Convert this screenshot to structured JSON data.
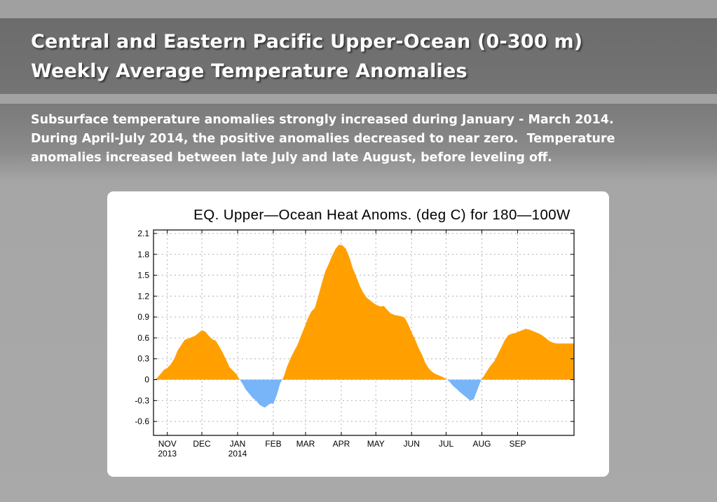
{
  "slide": {
    "title_lines": [
      "Central and Eastern Pacific Upper-Ocean (0-300 m)",
      "Weekly Average Temperature Anomalies"
    ],
    "body_lines": [
      "Subsurface temperature anomalies strongly increased during January - March 2014.",
      "During April-July 2014, the positive anomalies decreased to near zero.  Temperature",
      "anomalies increased between late July and late August, before leveling off."
    ],
    "colors": {
      "positive_fill": "#ffa000",
      "negative_fill": "#78b4f8",
      "title_band": "#707070",
      "text": "#ffffff"
    }
  },
  "chart_data": {
    "type": "area",
    "title": "EQ. Upper—Ocean Heat Anoms. (deg C) for 180—100W",
    "xlabel": "",
    "ylabel": "",
    "ylim": [
      -0.8,
      2.15
    ],
    "yticks": [
      2.1,
      1.8,
      1.5,
      1.2,
      0.9,
      0.6,
      0.3,
      0,
      -0.3,
      -0.6
    ],
    "ytick_labels": [
      "2.1",
      "1.8",
      "1.5",
      "1.2",
      "0.9",
      "0.6",
      "0.3",
      "0",
      "-0.3",
      "-0.6"
    ],
    "xlim": [
      "2013-10-20",
      "2014-10-20"
    ],
    "xticks": [
      {
        "date": "2013-11-01",
        "label": "NOV",
        "sublabel": "2013"
      },
      {
        "date": "2013-12-01",
        "label": "DEC",
        "sublabel": ""
      },
      {
        "date": "2014-01-01",
        "label": "JAN",
        "sublabel": "2014"
      },
      {
        "date": "2014-02-01",
        "label": "FEB",
        "sublabel": ""
      },
      {
        "date": "2014-03-01",
        "label": "MAR",
        "sublabel": ""
      },
      {
        "date": "2014-04-01",
        "label": "APR",
        "sublabel": ""
      },
      {
        "date": "2014-05-01",
        "label": "MAY",
        "sublabel": ""
      },
      {
        "date": "2014-06-01",
        "label": "JUN",
        "sublabel": ""
      },
      {
        "date": "2014-07-01",
        "label": "JUL",
        "sublabel": ""
      },
      {
        "date": "2014-08-01",
        "label": "AUG",
        "sublabel": ""
      },
      {
        "date": "2014-09-01",
        "label": "SEP",
        "sublabel": ""
      }
    ],
    "grid": true,
    "positive_color": "#ffa000",
    "negative_color": "#78b4f8",
    "series": [
      {
        "x": [
          "2013-10-20",
          "2013-10-23",
          "2013-10-26",
          "2013-10-29",
          "2013-11-01",
          "2013-11-04",
          "2013-11-07",
          "2013-11-10",
          "2013-11-14",
          "2013-11-16",
          "2013-11-19",
          "2013-11-22",
          "2013-11-25",
          "2013-11-28",
          "2013-12-01",
          "2013-12-04",
          "2013-12-07",
          "2013-12-10",
          "2013-12-13",
          "2013-12-16",
          "2013-12-19",
          "2013-12-22",
          "2013-12-25",
          "2013-12-28",
          "2013-12-31",
          "2014-01-02",
          "2014-01-05",
          "2014-01-08",
          "2014-01-11",
          "2014-01-14",
          "2014-01-17",
          "2014-01-20",
          "2014-01-23",
          "2014-01-25",
          "2014-01-27",
          "2014-01-30",
          "2014-02-01",
          "2014-02-04",
          "2014-02-07",
          "2014-02-10",
          "2014-02-13",
          "2014-02-16",
          "2014-02-19",
          "2014-02-22",
          "2014-02-25",
          "2014-02-28",
          "2014-03-03",
          "2014-03-06",
          "2014-03-09",
          "2014-03-12",
          "2014-03-15",
          "2014-03-18",
          "2014-03-21",
          "2014-03-24",
          "2014-03-27",
          "2014-03-30",
          "2014-04-02",
          "2014-04-05",
          "2014-04-08",
          "2014-04-11",
          "2014-04-14",
          "2014-04-17",
          "2014-04-20",
          "2014-04-23",
          "2014-04-26",
          "2014-04-29",
          "2014-05-02",
          "2014-05-05",
          "2014-05-08",
          "2014-05-11",
          "2014-05-14",
          "2014-05-17",
          "2014-05-20",
          "2014-05-23",
          "2014-05-26",
          "2014-05-29",
          "2014-06-01",
          "2014-06-04",
          "2014-06-07",
          "2014-06-10",
          "2014-06-13",
          "2014-06-16",
          "2014-06-19",
          "2014-06-22",
          "2014-06-25",
          "2014-06-28",
          "2014-07-01",
          "2014-07-04",
          "2014-07-07",
          "2014-07-10",
          "2014-07-13",
          "2014-07-16",
          "2014-07-19",
          "2014-07-22",
          "2014-07-25",
          "2014-07-28",
          "2014-07-31",
          "2014-08-03",
          "2014-08-06",
          "2014-08-09",
          "2014-08-12",
          "2014-08-15",
          "2014-08-18",
          "2014-08-21",
          "2014-08-24",
          "2014-08-27",
          "2014-08-30",
          "2014-09-02",
          "2014-09-05",
          "2014-09-08",
          "2014-09-11",
          "2014-09-14",
          "2014-09-17",
          "2014-09-20",
          "2014-09-23",
          "2014-09-26",
          "2014-09-29",
          "2014-10-02",
          "2014-10-05",
          "2014-10-08",
          "2014-10-11",
          "2014-10-14",
          "2014-10-17",
          "2014-10-20"
        ],
        "y": [
          0.0,
          0.02,
          0.08,
          0.14,
          0.17,
          0.22,
          0.3,
          0.42,
          0.52,
          0.57,
          0.59,
          0.61,
          0.63,
          0.67,
          0.71,
          0.69,
          0.63,
          0.58,
          0.56,
          0.48,
          0.39,
          0.29,
          0.18,
          0.13,
          0.08,
          0.02,
          -0.05,
          -0.14,
          -0.2,
          -0.26,
          -0.3,
          -0.36,
          -0.39,
          -0.4,
          -0.37,
          -0.34,
          -0.35,
          -0.22,
          -0.05,
          0.04,
          0.19,
          0.31,
          0.41,
          0.5,
          0.63,
          0.75,
          0.88,
          0.98,
          1.03,
          1.2,
          1.38,
          1.55,
          1.66,
          1.78,
          1.88,
          1.94,
          1.93,
          1.88,
          1.76,
          1.6,
          1.48,
          1.35,
          1.25,
          1.18,
          1.14,
          1.1,
          1.07,
          1.05,
          1.06,
          1.0,
          0.95,
          0.93,
          0.92,
          0.91,
          0.89,
          0.8,
          0.68,
          0.58,
          0.46,
          0.36,
          0.24,
          0.16,
          0.11,
          0.08,
          0.06,
          0.04,
          0.01,
          -0.03,
          -0.09,
          -0.13,
          -0.18,
          -0.22,
          -0.26,
          -0.3,
          -0.28,
          -0.15,
          -0.02,
          0.06,
          0.14,
          0.21,
          0.27,
          0.37,
          0.47,
          0.57,
          0.64,
          0.66,
          0.67,
          0.69,
          0.71,
          0.73,
          0.72,
          0.7,
          0.68,
          0.66,
          0.63,
          0.59,
          0.55,
          0.53,
          0.52,
          0.52,
          0.52,
          0.52,
          0.52,
          0.52
        ]
      }
    ]
  }
}
